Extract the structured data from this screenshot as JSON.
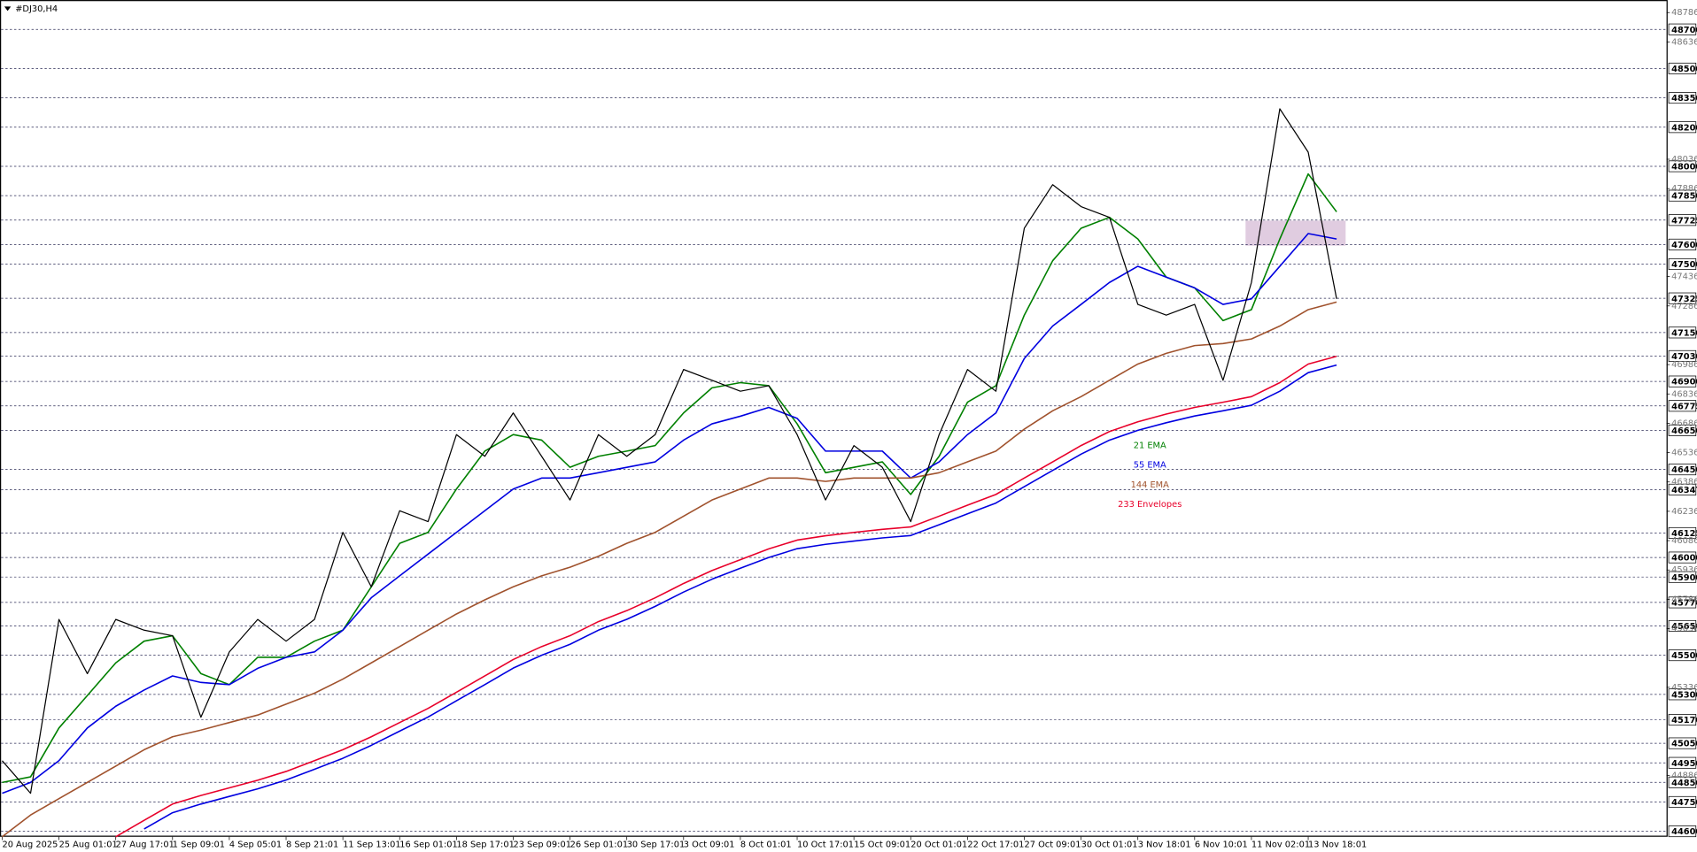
{
  "chart_data": {
    "type": "line",
    "title": "#DJ30,H4",
    "categories": [
      "20 Aug 2025",
      null,
      "25 Aug 01:01",
      null,
      "27 Aug 17:01",
      null,
      "1 Sep 09:01",
      null,
      "4 Sep 05:01",
      null,
      "8 Sep 21:01",
      null,
      "11 Sep 13:01",
      null,
      "16 Sep 01:01",
      null,
      "18 Sep 17:01",
      null,
      "23 Sep 09:01",
      null,
      "26 Sep 01:01",
      null,
      "30 Sep 17:01",
      null,
      "3 Oct 09:01",
      null,
      "8 Oct 01:01",
      null,
      "10 Oct 17:01",
      null,
      "15 Oct 09:01",
      null,
      "20 Oct 01:01",
      null,
      "22 Oct 17:01",
      null,
      "27 Oct 09:01",
      null,
      "30 Oct 01:01",
      null,
      "3 Nov 18:01",
      null,
      "6 Nov 10:01",
      null,
      "11 Nov 02:01",
      null,
      "13 Nov 18:01",
      null
    ],
    "values": [
      44961,
      44794,
      45683,
      45406,
      45683,
      45628,
      45600,
      45183,
      45517,
      45683,
      45572,
      45683,
      46128,
      45850,
      46239,
      46183,
      46628,
      46517,
      46739,
      46517,
      46294,
      46628,
      46517,
      46628,
      46961,
      46906,
      46850,
      46878,
      46628,
      46294,
      46572,
      46461,
      46183,
      46628,
      46961,
      46850,
      47683,
      47906,
      47794,
      47739,
      47294,
      47239,
      47294,
      46906,
      47406,
      48294,
      48072,
      47322
    ],
    "color": "#000000",
    "series": [
      {
        "name": "21 EMA",
        "color": "#008000",
        "values": [
          44850,
          44878,
          45128,
          45294,
          45461,
          45572,
          45600,
          45406,
          45350,
          45489,
          45489,
          45572,
          45628,
          45850,
          46072,
          46128,
          46350,
          46544,
          46628,
          46600,
          46461,
          46517,
          46544,
          46572,
          46739,
          46867,
          46894,
          46878,
          46683,
          46433,
          46461,
          46489,
          46322,
          46517,
          46794,
          46878,
          47239,
          47517,
          47683,
          47739,
          47628,
          47433,
          47378,
          47211,
          47267,
          47628,
          47961,
          47767
        ]
      },
      {
        "name": "55 EMA",
        "color": "#0000e0",
        "values": [
          44794,
          44850,
          44961,
          45128,
          45239,
          45322,
          45394,
          45361,
          45350,
          45433,
          45489,
          45517,
          45628,
          45794,
          45906,
          46017,
          46128,
          46239,
          46350,
          46406,
          46406,
          46433,
          46461,
          46489,
          46600,
          46683,
          46722,
          46767,
          46711,
          46544,
          46544,
          46544,
          46406,
          46489,
          46628,
          46739,
          47017,
          47183,
          47294,
          47406,
          47489,
          47433,
          47378,
          47294,
          47322,
          47489,
          47656,
          47628
        ]
      },
      {
        "name": "144 EMA",
        "color": "#a0522d",
        "values": [
          44572,
          44683,
          44767,
          44850,
          44933,
          45017,
          45083,
          45117,
          45156,
          45194,
          45250,
          45306,
          45378,
          45461,
          45544,
          45628,
          45711,
          45783,
          45850,
          45906,
          45950,
          46006,
          46072,
          46128,
          46211,
          46294,
          46350,
          46406,
          46406,
          46389,
          46406,
          46406,
          46406,
          46433,
          46489,
          46544,
          46656,
          46750,
          46822,
          46906,
          46989,
          47044,
          47083,
          47094,
          47117,
          47183,
          47267,
          47306
        ]
      },
      {
        "name": "233 Envelopes",
        "color": "#e8002a",
        "values": [
          null,
          null,
          null,
          null,
          44572,
          44656,
          44739,
          44783,
          44822,
          44861,
          44906,
          44961,
          45017,
          45083,
          45156,
          45228,
          45311,
          45394,
          45478,
          45544,
          45600,
          45672,
          45728,
          45794,
          45867,
          45933,
          45989,
          46044,
          46089,
          46111,
          46128,
          46144,
          46156,
          46211,
          46267,
          46322,
          46406,
          46489,
          46572,
          46644,
          46694,
          46733,
          46767,
          46794,
          46822,
          46894,
          46989,
          47028
        ]
      },
      {
        "color": "#0000e0",
        "values": [
          null,
          null,
          null,
          null,
          null,
          44612,
          44695,
          44739,
          44778,
          44817,
          44862,
          44917,
          44973,
          45039,
          45112,
          45184,
          45267,
          45350,
          45434,
          45500,
          45556,
          45628,
          45684,
          45750,
          45823,
          45889,
          45945,
          46000,
          46045,
          46067,
          46084,
          46100,
          46112,
          46167,
          46223,
          46278,
          46362,
          46445,
          46528,
          46600,
          46650,
          46689,
          46723,
          46750,
          46778,
          46850,
          46945,
          46984
        ]
      }
    ],
    "ylim": [
      44572,
      48850
    ],
    "yticks": [
      48786,
      48636,
      48036,
      47886,
      47436,
      47286,
      46986,
      46836,
      46686,
      46536,
      46386,
      46236,
      46086,
      45936,
      45786,
      45636,
      45336,
      44886
    ],
    "levels": [
      48700,
      48500,
      48350,
      48200,
      48000,
      47850,
      47725,
      47600,
      47500,
      47325,
      47150,
      47030,
      46900,
      46775,
      46650,
      46450,
      46347,
      46125,
      46000,
      45900,
      45770,
      45650,
      45500,
      45300,
      45170,
      45050,
      44950,
      44850,
      44750,
      44600
    ],
    "zone": [
      47594,
      47722
    ],
    "zone_color": "#d8bfd8",
    "grid": true
  }
}
